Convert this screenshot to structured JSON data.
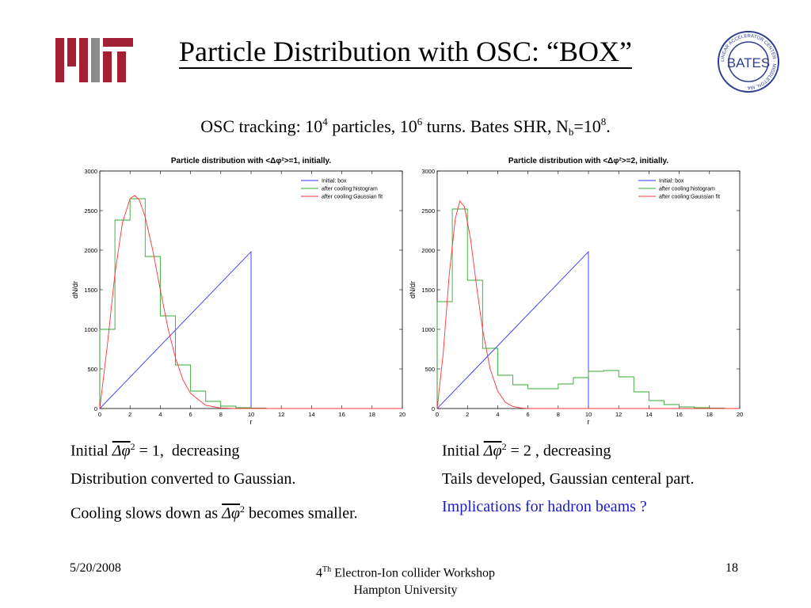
{
  "header": {
    "title": "Particle Distribution with OSC: “BOX”",
    "logo_left": "MIT",
    "logo_right": "LINEAR ACCELERATOR CENTER · BATES · MIDDLETON, MA"
  },
  "subtitle": {
    "prefix": "OSC tracking: 10",
    "exp1": "4",
    "mid1": " particles, 10",
    "exp2": "6",
    "mid2": " turns. Bates SHR, N",
    "sub": "b",
    "mid3": "=10",
    "exp3": "8",
    "suffix": "."
  },
  "chart_data": [
    {
      "type": "line",
      "title": "Particle distribution with <Δφ²>=1, initially.",
      "xlabel": "r",
      "ylabel": "dN/dr",
      "xlim": [
        0,
        20
      ],
      "ylim": [
        0,
        3000
      ],
      "xticks": [
        "0",
        "2",
        "4",
        "6",
        "8",
        "10",
        "12",
        "14",
        "16",
        "18",
        "20"
      ],
      "yticks": [
        "0",
        "500",
        "1000",
        "1500",
        "2000",
        "2500",
        "3000"
      ],
      "legend_position": "top-right",
      "series": [
        {
          "name": "Initial: box",
          "color": "#3333ff",
          "kind": "line",
          "x": [
            0,
            10,
            10,
            20
          ],
          "y": [
            0,
            1980,
            0,
            0
          ]
        },
        {
          "name": "after cooling:histogram",
          "color": "#33aa33",
          "kind": "step",
          "edges": [
            0,
            1,
            2,
            3,
            4,
            5,
            6,
            7,
            8,
            9,
            10,
            11,
            12,
            13,
            14,
            15,
            16,
            17,
            18,
            19,
            20
          ],
          "values": [
            1000,
            2380,
            2650,
            1920,
            1170,
            550,
            220,
            90,
            30,
            10,
            5,
            0,
            0,
            0,
            0,
            0,
            0,
            0,
            0,
            0
          ]
        },
        {
          "name": "after cooling:Gaussian fit",
          "color": "#ff3333",
          "kind": "line",
          "x": [
            0,
            0.5,
            1,
            1.5,
            2,
            2.3,
            2.6,
            3,
            3.5,
            4,
            4.5,
            5,
            5.5,
            6,
            7,
            8,
            9,
            10,
            12,
            20
          ],
          "y": [
            0,
            800,
            1700,
            2350,
            2650,
            2690,
            2640,
            2420,
            2000,
            1500,
            1020,
            640,
            360,
            190,
            40,
            5,
            0,
            0,
            0,
            0
          ]
        }
      ]
    },
    {
      "type": "line",
      "title": "Particle distribution with <Δφ²>=2, initially.",
      "xlabel": "r",
      "ylabel": "dN/dr",
      "xlim": [
        0,
        20
      ],
      "ylim": [
        0,
        3000
      ],
      "xticks": [
        "0",
        "2",
        "4",
        "6",
        "8",
        "10",
        "12",
        "14",
        "16",
        "18",
        "20"
      ],
      "yticks": [
        "0",
        "500",
        "1000",
        "1500",
        "2000",
        "2500",
        "3000"
      ],
      "legend_position": "top-right",
      "series": [
        {
          "name": "Initial: box",
          "color": "#3333ff",
          "kind": "line",
          "x": [
            0,
            10,
            10,
            20
          ],
          "y": [
            0,
            1980,
            0,
            0
          ]
        },
        {
          "name": "after cooling:histogram",
          "color": "#33aa33",
          "kind": "step",
          "edges": [
            0,
            1,
            2,
            3,
            4,
            5,
            6,
            7,
            8,
            9,
            10,
            11,
            12,
            13,
            14,
            15,
            16,
            17,
            18,
            19,
            20
          ],
          "values": [
            1350,
            2520,
            1620,
            760,
            420,
            300,
            250,
            250,
            310,
            390,
            470,
            480,
            400,
            210,
            100,
            50,
            20,
            10,
            5,
            0
          ]
        },
        {
          "name": "after cooling:Gaussian fit",
          "color": "#ff3333",
          "kind": "line",
          "x": [
            0,
            0.4,
            0.8,
            1.2,
            1.5,
            1.8,
            2.2,
            2.6,
            3,
            3.5,
            4,
            4.5,
            5,
            5.5,
            6,
            7,
            20
          ],
          "y": [
            0,
            700,
            1700,
            2400,
            2620,
            2550,
            2150,
            1550,
            1000,
            500,
            220,
            80,
            25,
            8,
            0,
            0,
            0
          ]
        }
      ]
    }
  ],
  "captions": {
    "left": {
      "line1_initial": "Initial",
      "line1_math": "Δφ",
      "line1_sup": "2",
      "line1_eq": "= 1,",
      "line1_tail": "decreasing",
      "line2": "Distribution converted to Gaussian.",
      "line3_pre": "Cooling slows down as",
      "line3_math": "Δφ",
      "line3_sup": "2",
      "line3_post": "becomes smaller."
    },
    "right": {
      "line1_initial": "Initial",
      "line1_math": "Δφ",
      "line1_sup": "2",
      "line1_eq": "= 2 ,",
      "line1_tail": "decreasing",
      "line2": "Tails developed,  Gaussian centeral part.",
      "line3": "Implications for hadron beams ?",
      "line3_color": "#1a1acc"
    }
  },
  "footer": {
    "date": "5/20/2008",
    "workshop_pre": "4",
    "workshop_sup": "Th",
    "workshop_post": " Electron-Ion collider Workshop",
    "venue": "Hampton University",
    "page": "18"
  }
}
